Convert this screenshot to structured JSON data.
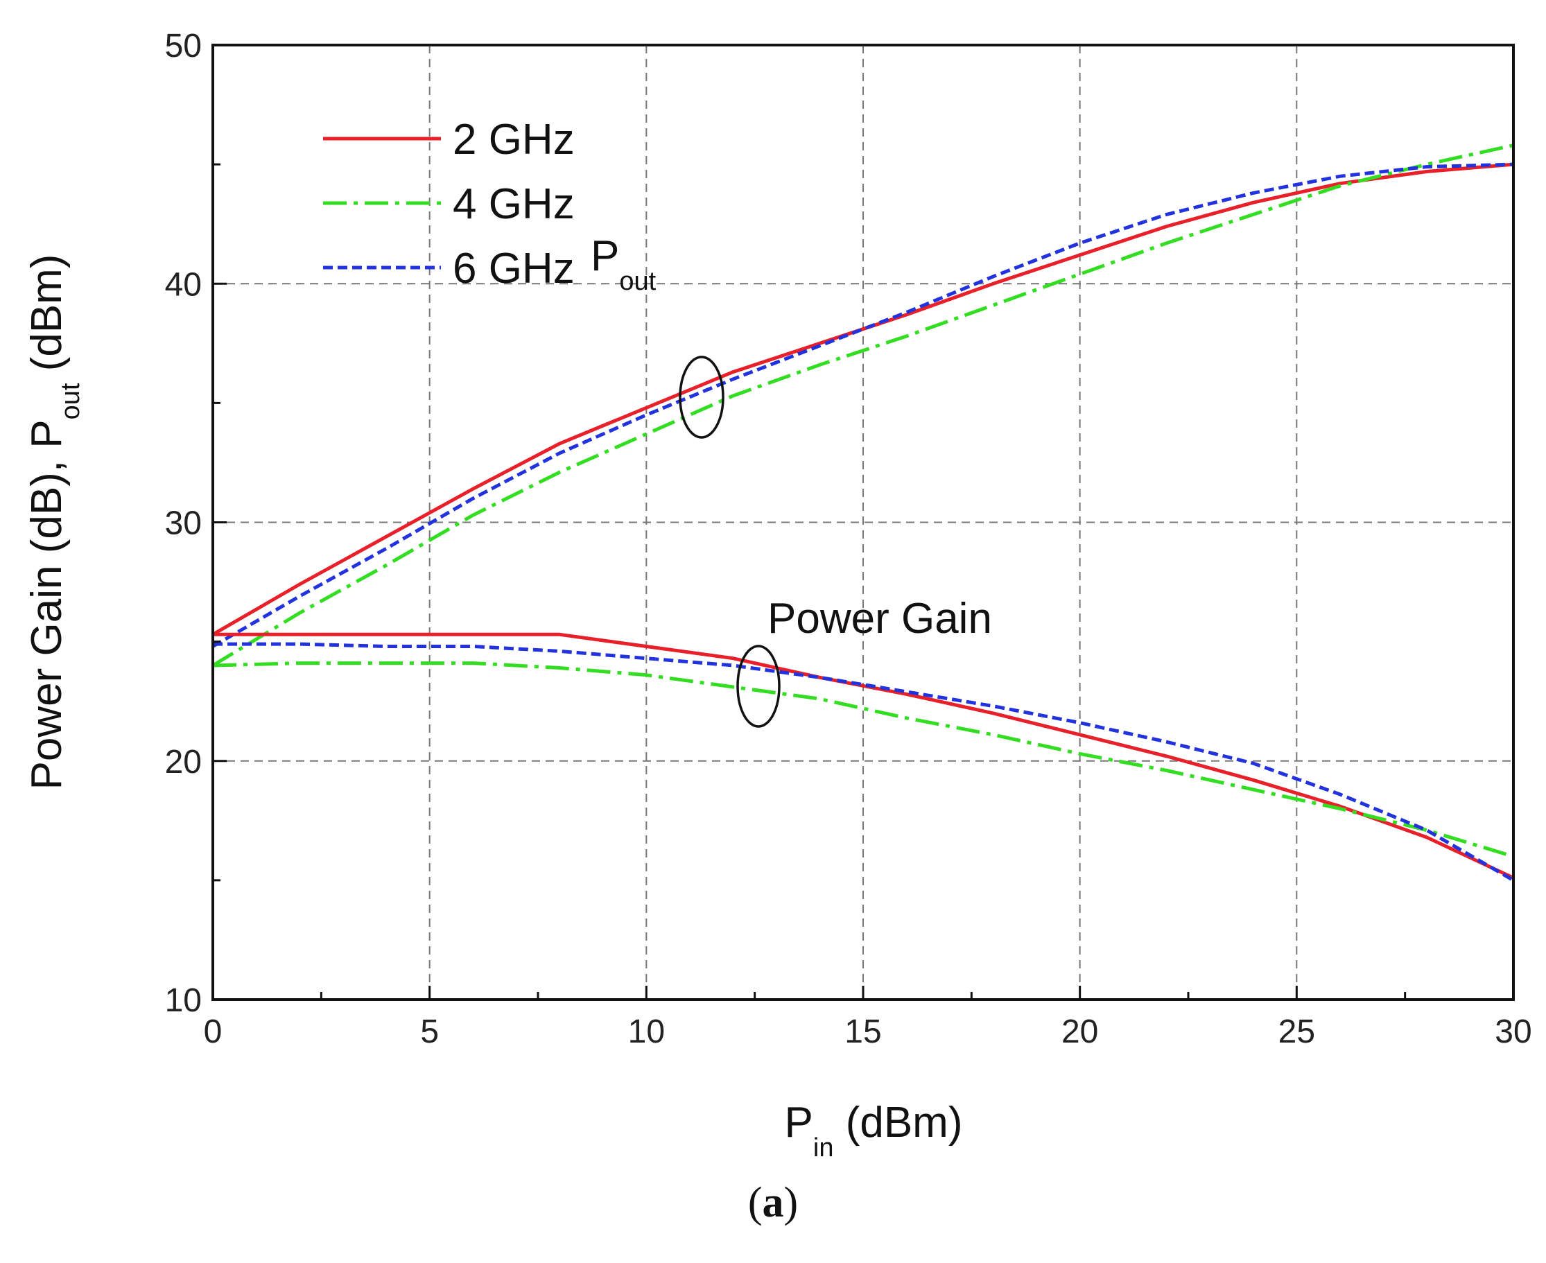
{
  "chart_data": {
    "type": "line",
    "xlabel": "P",
    "xlabel_sub": "in",
    "xlabel_unit": "(dBm)",
    "ylabel_main": "Power Gain (dB), P",
    "ylabel_sub": "out",
    "ylabel_unit": "(dBm)",
    "xlim": [
      0,
      30
    ],
    "ylim": [
      10,
      50
    ],
    "xticks": [
      "0",
      "5",
      "10",
      "15",
      "20",
      "25",
      "30"
    ],
    "yticks": [
      "10",
      "20",
      "30",
      "40",
      "50"
    ],
    "grid": true,
    "legend_position": "top-left",
    "legend": [
      "2 GHz",
      "4 GHz",
      "6 GHz"
    ],
    "annotations": {
      "pout_label": "P",
      "pout_sub": "out",
      "gain_label": "Power Gain"
    },
    "series": [
      {
        "name": "2 GHz",
        "group": "Pout",
        "style": "solid",
        "color": "#e8202a",
        "x": [
          0,
          2,
          4,
          6,
          8,
          10,
          12,
          14,
          16,
          18,
          20,
          22,
          24,
          26,
          28,
          30
        ],
        "y": [
          25.3,
          27.4,
          29.4,
          31.4,
          33.3,
          34.8,
          36.3,
          37.5,
          38.7,
          40.0,
          41.2,
          42.4,
          43.4,
          44.2,
          44.7,
          45.0
        ]
      },
      {
        "name": "4 GHz",
        "group": "Pout",
        "style": "dashdot",
        "color": "#33dd22",
        "x": [
          0,
          2,
          4,
          6,
          8,
          10,
          12,
          14,
          16,
          18,
          20,
          22,
          24,
          26,
          28,
          30
        ],
        "y": [
          24.0,
          26.2,
          28.2,
          30.3,
          32.1,
          33.7,
          35.3,
          36.6,
          37.8,
          39.1,
          40.4,
          41.7,
          42.9,
          44.1,
          45.0,
          45.8
        ]
      },
      {
        "name": "6 GHz",
        "group": "Pout",
        "style": "dashed",
        "color": "#2233dd",
        "x": [
          0,
          2,
          4,
          6,
          8,
          10,
          12,
          14,
          16,
          18,
          20,
          22,
          24,
          26,
          28,
          30
        ],
        "y": [
          24.8,
          26.9,
          28.9,
          31.0,
          32.9,
          34.5,
          36.0,
          37.4,
          38.8,
          40.3,
          41.7,
          42.9,
          43.8,
          44.5,
          44.9,
          45.0
        ]
      },
      {
        "name": "2 GHz",
        "group": "Gain",
        "style": "solid",
        "color": "#e8202a",
        "x": [
          0,
          2,
          4,
          6,
          8,
          10,
          12,
          14,
          16,
          18,
          20,
          22,
          24,
          26,
          28,
          30
        ],
        "y": [
          25.3,
          25.3,
          25.3,
          25.3,
          25.3,
          24.8,
          24.3,
          23.5,
          22.8,
          22.0,
          21.1,
          20.2,
          19.2,
          18.1,
          16.8,
          15.1
        ]
      },
      {
        "name": "4 GHz",
        "group": "Gain",
        "style": "dashdot",
        "color": "#33dd22",
        "x": [
          0,
          2,
          4,
          6,
          8,
          10,
          12,
          14,
          16,
          18,
          20,
          22,
          24,
          26,
          28,
          30
        ],
        "y": [
          24.0,
          24.1,
          24.1,
          24.1,
          23.9,
          23.6,
          23.1,
          22.6,
          21.8,
          21.1,
          20.3,
          19.6,
          18.8,
          18.0,
          17.1,
          16.0
        ]
      },
      {
        "name": "6 GHz",
        "group": "Gain",
        "style": "dashed",
        "color": "#2233dd",
        "x": [
          0,
          2,
          4,
          6,
          8,
          10,
          12,
          14,
          16,
          18,
          20,
          22,
          24,
          26,
          28,
          30
        ],
        "y": [
          24.9,
          24.9,
          24.8,
          24.8,
          24.6,
          24.3,
          24.0,
          23.5,
          22.9,
          22.3,
          21.6,
          20.8,
          19.9,
          18.6,
          17.1,
          15.0
        ]
      }
    ]
  },
  "caption": {
    "open": "(",
    "label": "a",
    "close": ")"
  }
}
